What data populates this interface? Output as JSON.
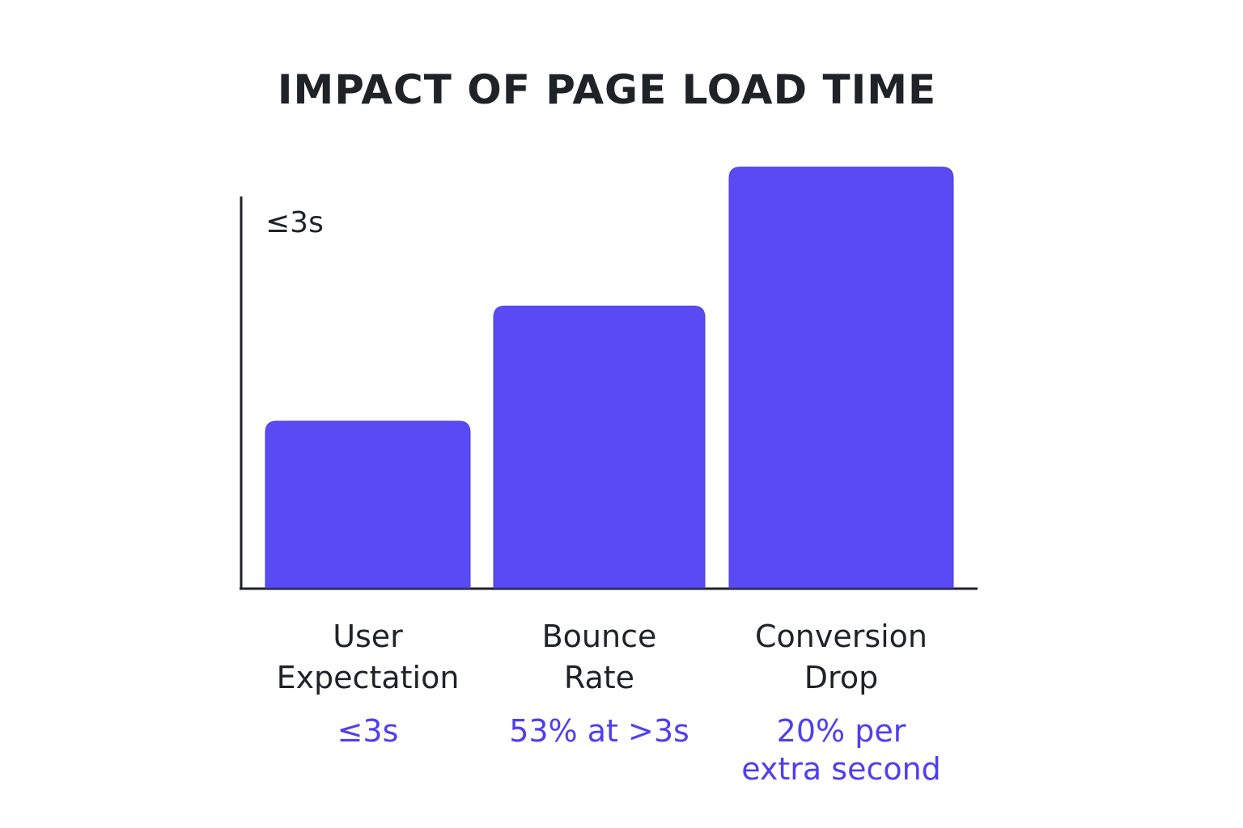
{
  "chart_data": {
    "type": "bar",
    "title": "IMPACT OF PAGE LOAD TIME",
    "ylabel": "≤3s",
    "xlabel": "",
    "grid": false,
    "categories": [
      [
        "User",
        "Expectation"
      ],
      [
        "Bounce",
        "Rate"
      ],
      [
        "Conversion",
        "Drop"
      ]
    ],
    "values": [
      42,
      71,
      106
    ],
    "ylim": [
      0,
      110
    ],
    "data_labels": [
      [
        "≤3s"
      ],
      [
        "53% at >3s"
      ],
      [
        "20% per",
        "extra second"
      ]
    ],
    "bar_color": "#5a4af4",
    "label_color": "#4f3ff0"
  }
}
